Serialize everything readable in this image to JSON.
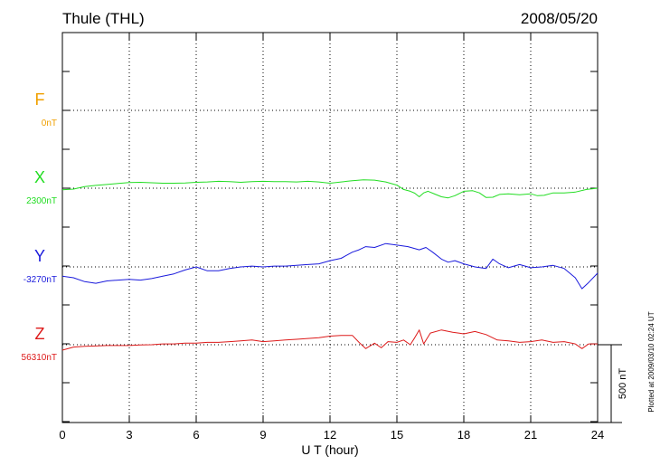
{
  "header": {
    "station": "Thule (THL)",
    "date": "2008/05/20"
  },
  "footer": {
    "plotted_note": "Plotted at 2009/03/10 02:24 UT",
    "scale_label": "500 nT"
  },
  "chart_data": {
    "type": "line",
    "xlabel": "U T (hour)",
    "xlim": [
      0,
      24
    ],
    "x_ticks": [
      0,
      3,
      6,
      9,
      12,
      15,
      18,
      21,
      24
    ],
    "grid": true,
    "scale_bar_nT": 500,
    "components": [
      {
        "name": "F",
        "baseline_label": "0nT",
        "color": "#f0a000",
        "x": [],
        "y": []
      },
      {
        "name": "X",
        "baseline_label": "2300nT",
        "color": "#22dd22",
        "x": [
          0,
          0.5,
          1,
          1.5,
          2,
          2.5,
          3,
          3.5,
          4,
          4.5,
          5,
          5.5,
          6,
          6.5,
          7,
          7.5,
          8,
          8.5,
          9,
          9.5,
          10,
          10.5,
          11,
          11.5,
          12,
          12.5,
          13,
          13.5,
          14,
          14.5,
          15,
          15.3,
          15.6,
          15.8,
          16,
          16.2,
          16.4,
          16.7,
          17,
          17.3,
          17.6,
          18,
          18.4,
          18.7,
          19,
          19.3,
          19.6,
          20,
          20.5,
          21,
          21.3,
          21.6,
          22,
          22.5,
          23,
          23.5,
          24
        ],
        "y": [
          -10,
          -6,
          10,
          18,
          24,
          30,
          36,
          38,
          35,
          32,
          32,
          34,
          38,
          40,
          44,
          42,
          38,
          42,
          44,
          42,
          42,
          40,
          44,
          40,
          32,
          40,
          48,
          54,
          52,
          40,
          20,
          -8,
          -20,
          -32,
          -55,
          -30,
          -20,
          -38,
          -55,
          -62,
          -48,
          -20,
          -16,
          -30,
          -60,
          -58,
          -40,
          -36,
          -42,
          -36,
          -48,
          -46,
          -30,
          -30,
          -25,
          -8,
          0
        ]
      },
      {
        "name": "Y",
        "baseline_label": "-3270nT",
        "color": "#1a1adc",
        "x": [
          0,
          0.5,
          1,
          1.5,
          2,
          2.5,
          3,
          3.5,
          4,
          4.5,
          5,
          5.5,
          6,
          6.5,
          7,
          7.5,
          8,
          8.5,
          9,
          9.5,
          10,
          10.5,
          11,
          11.5,
          12,
          12.5,
          13,
          13.3,
          13.6,
          14,
          14.5,
          15,
          15.5,
          16,
          16.3,
          16.6,
          17,
          17.3,
          17.6,
          18,
          18.5,
          19,
          19.3,
          19.6,
          20,
          20.5,
          21,
          21.5,
          22,
          22.5,
          23,
          23.3,
          23.6,
          24
        ],
        "y": [
          -60,
          -70,
          -95,
          -105,
          -90,
          -85,
          -80,
          -85,
          -75,
          -60,
          -45,
          -20,
          0,
          -25,
          -25,
          -10,
          0,
          5,
          0,
          5,
          5,
          10,
          15,
          20,
          40,
          55,
          95,
          110,
          130,
          125,
          150,
          140,
          130,
          110,
          125,
          95,
          50,
          30,
          40,
          20,
          0,
          -10,
          50,
          20,
          -5,
          15,
          -5,
          0,
          10,
          -10,
          -70,
          -140,
          -100,
          -40
        ]
      },
      {
        "name": "Z",
        "baseline_label": "56310nT",
        "color": "#dd1a1a",
        "x": [
          0,
          0.5,
          1,
          1.5,
          2,
          2.5,
          3,
          3.5,
          4,
          4.5,
          5,
          5.5,
          6,
          6.5,
          7,
          7.5,
          8,
          8.5,
          9,
          9.5,
          10,
          10.5,
          11,
          11.5,
          12,
          12.5,
          13,
          13.3,
          13.6,
          14,
          14.3,
          14.6,
          15,
          15.3,
          15.6,
          15.8,
          16,
          16.2,
          16.5,
          17,
          17.5,
          18,
          18.5,
          19,
          19.5,
          20,
          20.5,
          21,
          21.5,
          22,
          22.5,
          23,
          23.3,
          23.6,
          24
        ],
        "y": [
          -35,
          -15,
          -10,
          -8,
          -5,
          -5,
          -5,
          -2,
          0,
          5,
          5,
          10,
          10,
          15,
          15,
          20,
          25,
          30,
          20,
          25,
          30,
          35,
          40,
          45,
          55,
          60,
          60,
          15,
          -25,
          10,
          -20,
          20,
          15,
          30,
          0,
          45,
          95,
          5,
          75,
          95,
          80,
          70,
          85,
          65,
          30,
          25,
          15,
          20,
          30,
          15,
          20,
          5,
          -25,
          5,
          5
        ]
      }
    ]
  }
}
